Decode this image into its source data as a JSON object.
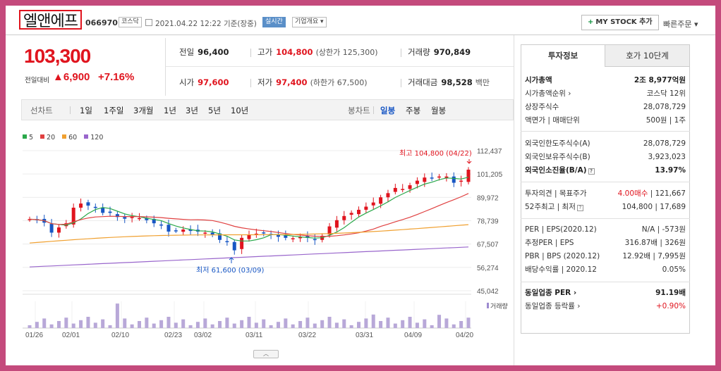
{
  "header": {
    "name": "엘앤에프",
    "code": "066970",
    "market_badge": "코스닥",
    "datetime": "2021.04.22 12:22  기준(장중)",
    "realtime_badge": "실시간",
    "company_badge": "기업개요 ▾",
    "mystock_label": "MY STOCK 추가",
    "mystock_plus": "+",
    "quick_order": "빠른주문 ▾"
  },
  "price": {
    "current": "103,300",
    "change_label": "전일대비",
    "change": "▲6,900",
    "change_pct": "+7.16%"
  },
  "stats": {
    "prev_close": {
      "k": "전일",
      "v": "96,400"
    },
    "high": {
      "k": "고가",
      "v": "104,800",
      "sub": "(상한가 125,300)"
    },
    "volume": {
      "k": "거래량",
      "v": "970,849"
    },
    "open": {
      "k": "시가",
      "v": "97,600"
    },
    "low": {
      "k": "저가",
      "v": "97,400",
      "sub": "(하한가 67,500)"
    },
    "amount": {
      "k": "거래대금",
      "v": "98,528",
      "unit": "백만"
    }
  },
  "period_bar": {
    "line_label": "선차트",
    "periods": [
      "1일",
      "1주일",
      "3개월",
      "1년",
      "3년",
      "5년",
      "10년"
    ],
    "candle_label": "봉차트",
    "candles": [
      "일봉",
      "주봉",
      "월봉"
    ],
    "active_candle": "일봉"
  },
  "chart_data": {
    "type": "candlestick",
    "legend": [
      {
        "name": "5",
        "color": "#2aa84a"
      },
      {
        "name": "20",
        "color": "#e04040"
      },
      {
        "name": "60",
        "color": "#f0a030"
      },
      {
        "name": "120",
        "color": "#9966cc"
      }
    ],
    "y_ticks": [
      "112,437",
      "101,205",
      "89,972",
      "78,739",
      "67,507",
      "56,274",
      "45,042"
    ],
    "x_ticks": [
      "01/26",
      "02/01",
      "02/10",
      "02/23",
      "03/02",
      "03/11",
      "03/22",
      "03/31",
      "04/09",
      "04/20"
    ],
    "volume_label": "거래량",
    "high_annotation": "최고 104,800 (04/22)",
    "low_annotation": "최저 61,600 (03/09)",
    "ylim": [
      45042,
      112437
    ]
  },
  "right_panel": {
    "tabs": [
      "투자정보",
      "호가 10단계"
    ],
    "rows1": [
      {
        "k": "시가총액",
        "v": "2조 8,977억원",
        "bold": true
      },
      {
        "k": "시가총액순위 ›",
        "v": "코스닥 12위"
      },
      {
        "k": "상장주식수",
        "v": "28,078,729"
      },
      {
        "k": "액면가 | 매매단위",
        "v": "500원 | 1주"
      }
    ],
    "rows2": [
      {
        "k": "외국인한도주식수(A)",
        "v": "28,078,729"
      },
      {
        "k": "외국인보유주식수(B)",
        "v": "3,923,023"
      },
      {
        "k": "외국인소진율(B/A)",
        "v": "13.97%",
        "bold": true,
        "qm": true
      }
    ],
    "opinion": {
      "k": "투자의견 | 목표주가",
      "v_red": "4.00매수",
      "v_rest": " | 121,667"
    },
    "week52": {
      "k": "52주최고 | 최저",
      "v": "104,800 | 17,689",
      "qm": true
    },
    "rows3": [
      {
        "k": "PER | EPS(2020.12)",
        "v": "N/A | -573원"
      },
      {
        "k": "추정PER | EPS",
        "v": "316.87배 | 326원"
      },
      {
        "k": "PBR | BPS (2020.12)",
        "v": "12.92배 | 7,995원"
      },
      {
        "k": "배당수익률 | 2020.12",
        "v": "0.05%"
      }
    ],
    "sector_per": {
      "k": "동일업종 PER ›",
      "v": "91.19배"
    },
    "sector_rate": {
      "k": "동일업종 등락률 ›",
      "v": "+0.90%"
    }
  },
  "bottom_handle": "︿"
}
